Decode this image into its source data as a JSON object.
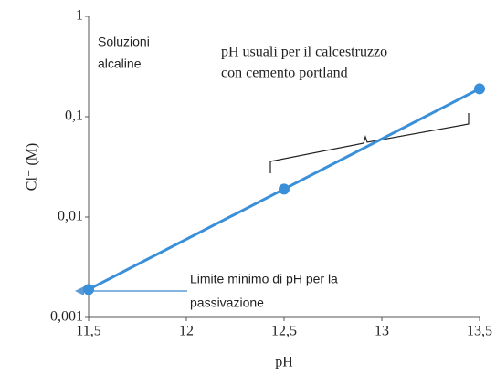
{
  "chart_data": {
    "type": "line",
    "x_label": "pH",
    "y_label": "Cl⁻ (M)",
    "x": [
      11.5,
      12.5,
      13.5
    ],
    "series": [
      {
        "color": "#3a8fd9",
        "values": [
          0.0019,
          0.019,
          0.19
        ]
      }
    ],
    "xlim": [
      11.5,
      13.5
    ],
    "xticks": [
      {
        "value": 11.5,
        "label": "11,5"
      },
      12,
      {
        "value": 12.5,
        "label": "12,5"
      },
      13,
      {
        "value": 13.5,
        "label": "13,5"
      }
    ],
    "ylim": [
      0.001,
      1
    ],
    "y_scale": "log",
    "yticks": [
      {
        "value": 0.001,
        "label": "0,001"
      },
      {
        "value": 0.01,
        "label": "0,01"
      },
      {
        "value": 0.1,
        "label": "0,1"
      },
      1
    ],
    "grid": false,
    "annotations": [
      [
        "Soluzioni",
        "alcaline"
      ],
      [
        "pH usuali per il calcestruzzo",
        "con cemento portland"
      ],
      [
        "Limite minimo di pH per la",
        "passivazione"
      ]
    ]
  }
}
